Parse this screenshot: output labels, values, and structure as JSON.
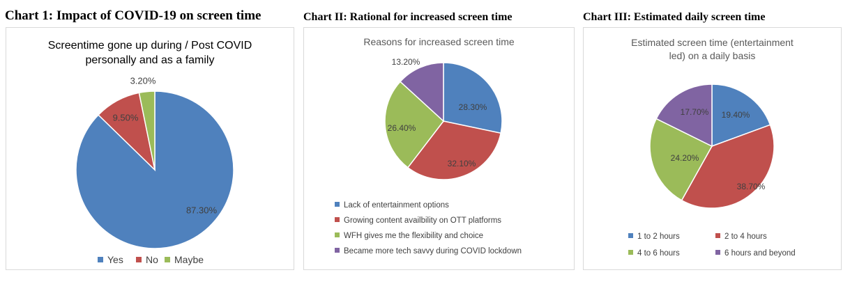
{
  "headings": {
    "chart1": "Chart 1: Impact of COVID-19 on screen time",
    "chart2": "Chart II: Rational for increased screen time",
    "chart3": "Chart III: Estimated daily screen time"
  },
  "chart_data": [
    {
      "type": "pie",
      "title_lines": [
        "Screentime gone up during / Post COVID",
        "personally and as a family"
      ],
      "categories": [
        "Yes",
        "No",
        "Maybe"
      ],
      "values": [
        87.3,
        9.5,
        3.2
      ],
      "labels": [
        "87.30%",
        "9.50%",
        "3.20%"
      ],
      "colors": [
        "#4f81bd",
        "#c0504d",
        "#9bbb59"
      ],
      "legend_position": "bottom"
    },
    {
      "type": "pie",
      "title_lines": [
        "Reasons for increased screen time"
      ],
      "categories": [
        "Lack of entertainment options",
        "Growing content availbility on OTT platforms",
        "WFH gives me the flexibility and choice",
        "Became more tech savvy during COVID lockdown"
      ],
      "values": [
        28.3,
        32.1,
        26.4,
        13.2
      ],
      "labels": [
        "28.30%",
        "32.10%",
        "26.40%",
        "13.20%"
      ],
      "colors": [
        "#4f81bd",
        "#c0504d",
        "#9bbb59",
        "#8064a2"
      ],
      "legend_position": "bottom"
    },
    {
      "type": "pie",
      "title_lines": [
        "Estimated screen time (entertainment",
        "led) on a daily basis"
      ],
      "categories": [
        "1 to 2 hours",
        "2 to 4 hours",
        "4 to 6 hours",
        "6 hours and beyond"
      ],
      "values": [
        19.4,
        38.7,
        24.2,
        17.7
      ],
      "labels": [
        "19.40%",
        "38.70%",
        "24.20%",
        "17.70%"
      ],
      "colors": [
        "#4f81bd",
        "#c0504d",
        "#9bbb59",
        "#8064a2"
      ],
      "legend_position": "bottom"
    }
  ]
}
